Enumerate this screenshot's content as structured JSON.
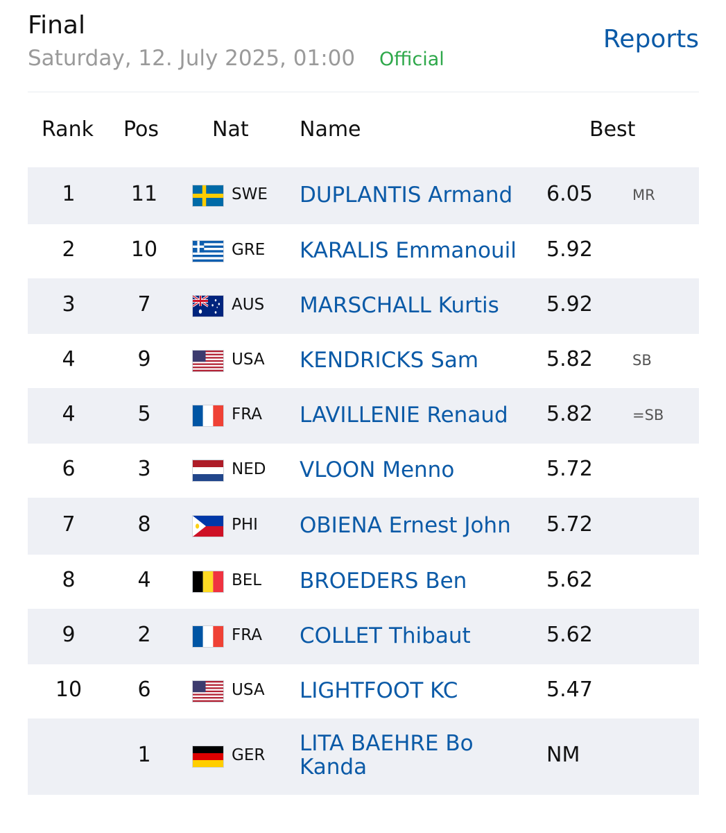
{
  "header": {
    "title": "Final",
    "date": "Saturday, 12. July 2025, 01:00",
    "status": "Official",
    "reports_label": "Reports"
  },
  "columns": {
    "rank": "Rank",
    "pos": "Pos",
    "nat": "Nat",
    "name": "Name",
    "best": "Best"
  },
  "rows": [
    {
      "rank": "1",
      "pos": "11",
      "nat": "SWE",
      "flag": "sweden-flag-icon",
      "name": "DUPLANTIS Armand",
      "best": "6.05",
      "note": "MR"
    },
    {
      "rank": "2",
      "pos": "10",
      "nat": "GRE",
      "flag": "greece-flag-icon",
      "name": "KARALIS Emmanouil",
      "best": "5.92",
      "note": ""
    },
    {
      "rank": "3",
      "pos": "7",
      "nat": "AUS",
      "flag": "australia-flag-icon",
      "name": "MARSCHALL Kurtis",
      "best": "5.92",
      "note": ""
    },
    {
      "rank": "4",
      "pos": "9",
      "nat": "USA",
      "flag": "usa-flag-icon",
      "name": "KENDRICKS Sam",
      "best": "5.82",
      "note": "SB"
    },
    {
      "rank": "4",
      "pos": "5",
      "nat": "FRA",
      "flag": "france-flag-icon",
      "name": "LAVILLENIE Renaud",
      "best": "5.82",
      "note": "=SB"
    },
    {
      "rank": "6",
      "pos": "3",
      "nat": "NED",
      "flag": "netherlands-flag-icon",
      "name": "VLOON Menno",
      "best": "5.72",
      "note": ""
    },
    {
      "rank": "7",
      "pos": "8",
      "nat": "PHI",
      "flag": "philippines-flag-icon",
      "name": "OBIENA Ernest John",
      "best": "5.72",
      "note": ""
    },
    {
      "rank": "8",
      "pos": "4",
      "nat": "BEL",
      "flag": "belgium-flag-icon",
      "name": "BROEDERS Ben",
      "best": "5.62",
      "note": ""
    },
    {
      "rank": "9",
      "pos": "2",
      "nat": "FRA",
      "flag": "france-flag-icon",
      "name": "COLLET Thibaut",
      "best": "5.62",
      "note": ""
    },
    {
      "rank": "10",
      "pos": "6",
      "nat": "USA",
      "flag": "usa-flag-icon",
      "name": "LIGHTFOOT KC",
      "best": "5.47",
      "note": ""
    },
    {
      "rank": "",
      "pos": "1",
      "nat": "GER",
      "flag": "germany-flag-icon",
      "name": "LITA BAEHRE Bo Kanda",
      "best": "NM",
      "note": ""
    }
  ],
  "colors": {
    "link": "#0b5aa7",
    "official": "#2ea84a",
    "row_alt": "#eef0f5",
    "muted": "#9a9a9a"
  }
}
